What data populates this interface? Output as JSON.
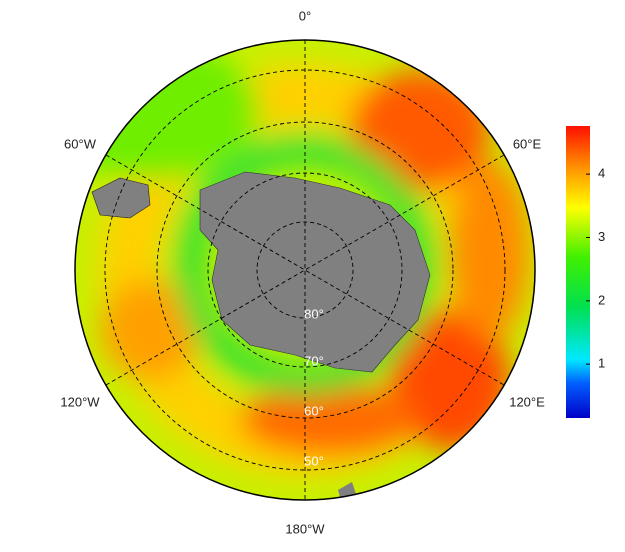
{
  "map": {
    "longitude_labels": [
      "0°",
      "60°E",
      "120°E",
      "180°W",
      "120°W",
      "60°W"
    ],
    "latitude_labels": [
      "80°",
      "70°",
      "60°",
      "50°"
    ],
    "colorbar": {
      "lim": [
        0.15,
        4.76
      ],
      "ticks": [
        1,
        2,
        3,
        4
      ]
    }
  }
}
